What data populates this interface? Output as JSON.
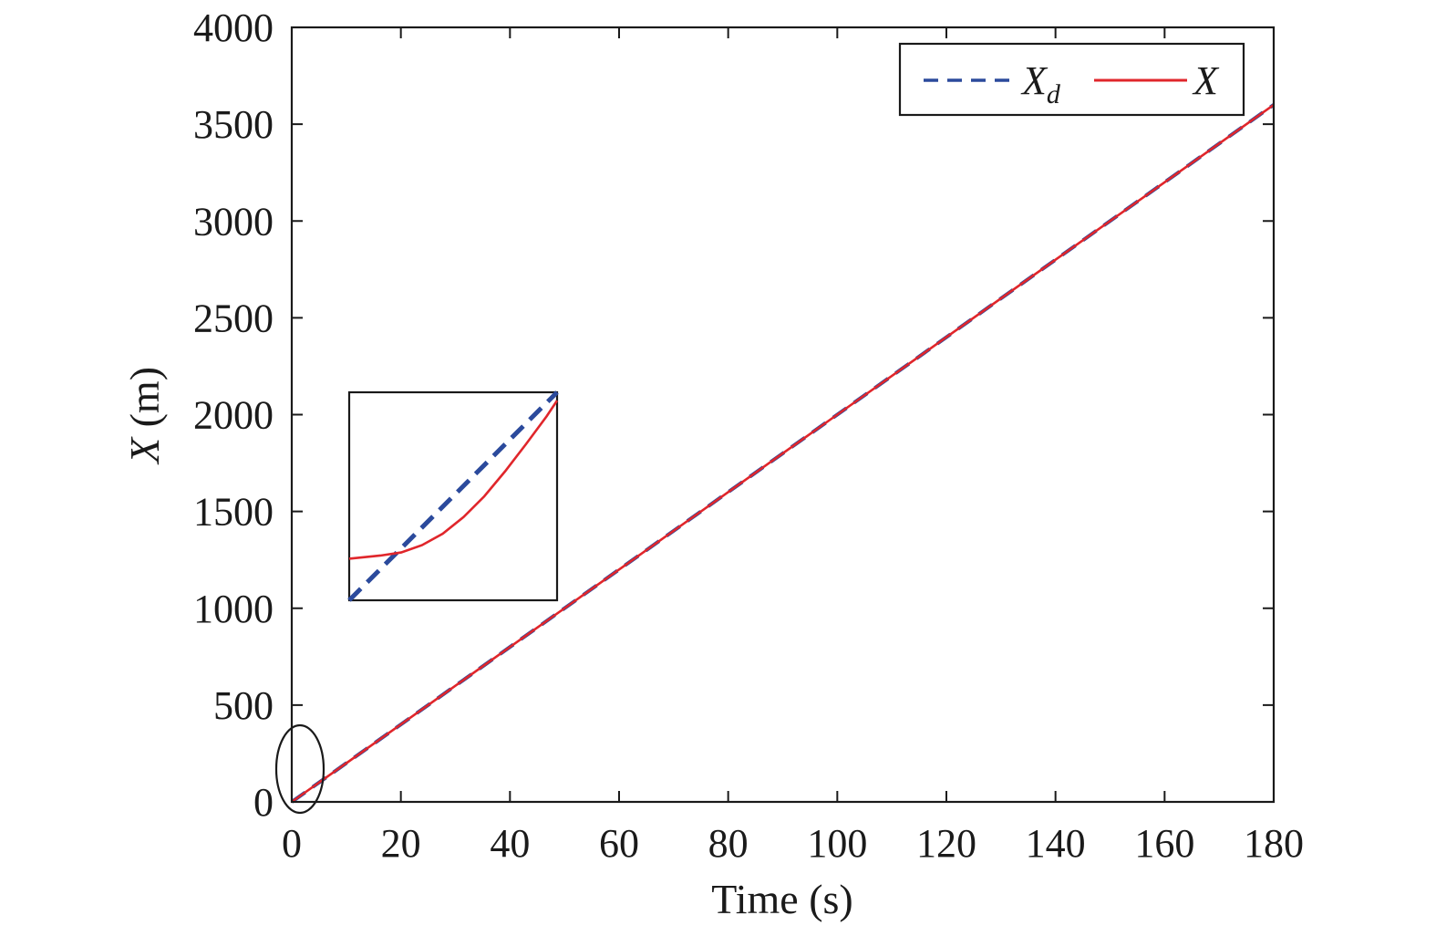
{
  "chart_data": {
    "type": "line",
    "xlabel": "Time (s)",
    "ylabel": {
      "var": "X",
      "unit": " (m)"
    },
    "xlim": [
      0,
      180
    ],
    "ylim": [
      0,
      4000
    ],
    "x_ticks": [
      "0",
      "20",
      "40",
      "60",
      "80",
      "100",
      "120",
      "140",
      "160",
      "180"
    ],
    "y_ticks": [
      "0",
      "500",
      "1000",
      "1500",
      "2000",
      "2500",
      "3000",
      "3500",
      "4000"
    ],
    "grid": false,
    "legend_position": "top-right",
    "series": [
      {
        "name": "X",
        "subscript": "d",
        "style": "dashed",
        "color": "#2b4a9c",
        "x": [
          0,
          180
        ],
        "y": [
          0,
          3600
        ]
      },
      {
        "name": "X",
        "subscript": "",
        "style": "solid",
        "color": "#e0262b",
        "x": [
          0,
          20,
          40,
          60,
          80,
          100,
          120,
          140,
          160,
          180
        ],
        "y": [
          0,
          400,
          800,
          1200,
          1600,
          2000,
          2400,
          2800,
          3200,
          3600
        ]
      }
    ],
    "inset": {
      "description_region": "zoom of the start (0 s) marked by an ellipse",
      "zoom_center": {
        "x": 1,
        "y": 0
      },
      "desired": {
        "x": [
          0,
          1
        ],
        "y": [
          0,
          1
        ]
      },
      "actual": {
        "x": [
          0,
          0.15,
          0.25,
          0.35,
          0.45,
          0.55,
          0.65,
          0.75,
          0.85,
          0.95,
          1
        ],
        "y": [
          0.2,
          0.215,
          0.23,
          0.265,
          0.32,
          0.4,
          0.5,
          0.62,
          0.75,
          0.885,
          0.96
        ]
      }
    }
  }
}
